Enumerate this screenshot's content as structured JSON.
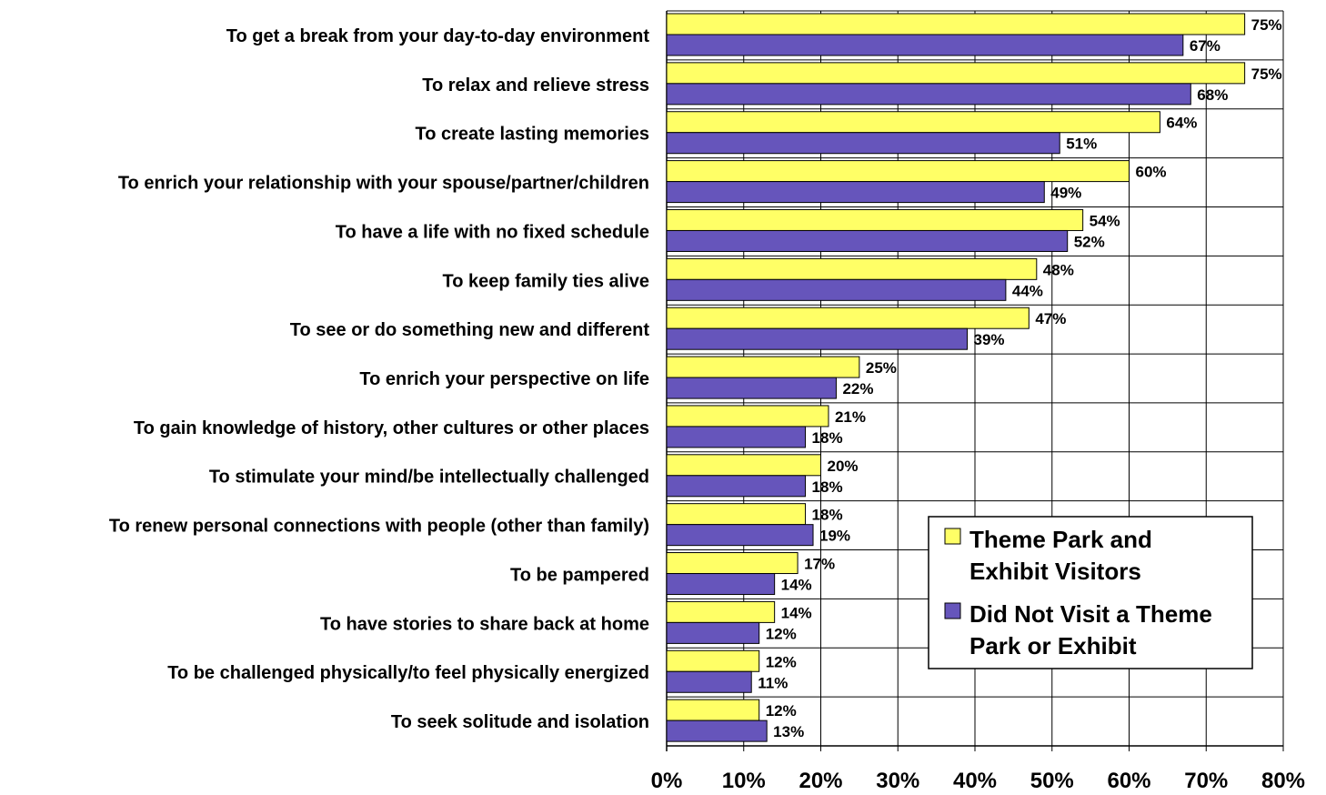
{
  "chart_data": {
    "type": "bar",
    "orientation": "horizontal",
    "title": "",
    "xlabel": "",
    "ylabel": "",
    "xlim": [
      0,
      80
    ],
    "x_tick_step": 10,
    "x_ticks": [
      "0%",
      "10%",
      "20%",
      "30%",
      "40%",
      "50%",
      "60%",
      "70%",
      "80%"
    ],
    "grid": true,
    "legend_position": "bottom-right",
    "categories": [
      "To get a break from your day-to-day environment",
      "To relax and relieve stress",
      "To create lasting memories",
      "To enrich your relationship with your spouse/partner/children",
      "To have a life with no fixed schedule",
      "To keep family ties alive",
      "To see or do something new and different",
      "To enrich your perspective on life",
      "To gain knowledge of history, other cultures or other places",
      "To stimulate your mind/be intellectually challenged",
      "To renew personal connections with people (other than family)",
      "To be pampered",
      "To have stories to share back at home",
      "To be challenged physically/to feel physically energized",
      "To seek solitude and isolation"
    ],
    "series": [
      {
        "name": "Theme Park and Exhibit Visitors",
        "legend_lines": [
          "Theme Park and",
          "Exhibit Visitors"
        ],
        "color": "#FFFF66",
        "values": [
          75,
          75,
          64,
          60,
          54,
          48,
          47,
          25,
          21,
          20,
          18,
          17,
          14,
          12,
          12
        ],
        "labels": [
          "75%",
          "75%",
          "64%",
          "60%",
          "54%",
          "48%",
          "47%",
          "25%",
          "21%",
          "20%",
          "18%",
          "17%",
          "14%",
          "12%",
          "12%"
        ]
      },
      {
        "name": "Did Not Visit a Theme Park or Exhibit",
        "legend_lines": [
          "Did Not Visit a Theme",
          "Park or Exhibit"
        ],
        "color": "#6655BB",
        "values": [
          67,
          68,
          51,
          49,
          52,
          44,
          39,
          22,
          18,
          18,
          19,
          14,
          12,
          11,
          13
        ],
        "labels": [
          "67%",
          "68%",
          "51%",
          "49%",
          "52%",
          "44%",
          "39%",
          "22%",
          "18%",
          "18%",
          "19%",
          "14%",
          "12%",
          "11%",
          "13%"
        ]
      }
    ]
  }
}
